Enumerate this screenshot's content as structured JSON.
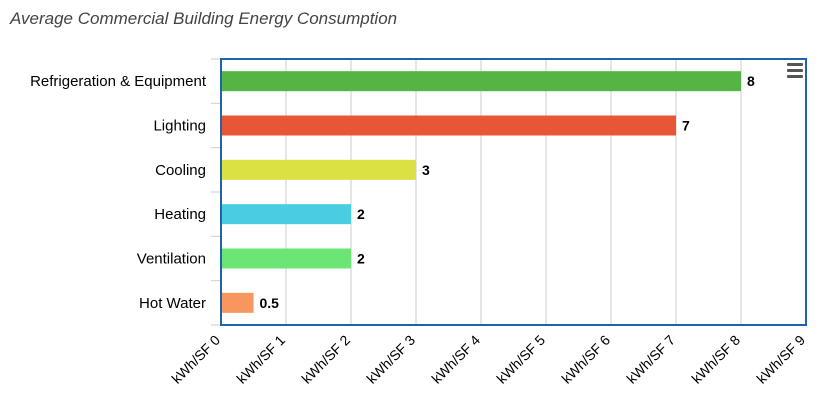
{
  "chart_data": {
    "type": "bar",
    "orientation": "horizontal",
    "title": "Average Commercial Building Energy Consumption",
    "categories": [
      "Refrigeration & Equipment",
      "Lighting",
      "Cooling",
      "Heating",
      "Ventilation",
      "Hot Water"
    ],
    "values": [
      8,
      7,
      3,
      2,
      2,
      0.5
    ],
    "value_labels": [
      "8",
      "7",
      "3",
      "2",
      "2",
      "0.5"
    ],
    "colors": [
      "#55b443",
      "#e85735",
      "#dbe043",
      "#48cde2",
      "#6be576",
      "#f9955f"
    ],
    "x_ticks": [
      "kWh/SF 0",
      "kWh/SF 1",
      "kWh/SF 2",
      "kWh/SF 3",
      "kWh/SF 4",
      "kWh/SF 5",
      "kWh/SF 6",
      "kWh/SF 7",
      "kWh/SF 8",
      "kWh/SF 9"
    ],
    "xlim": [
      0,
      9
    ],
    "grid": "vertical",
    "legend": "none",
    "plot_border_color": "#1f64a9"
  },
  "menu": {
    "icon": "hamburger-menu-icon"
  }
}
